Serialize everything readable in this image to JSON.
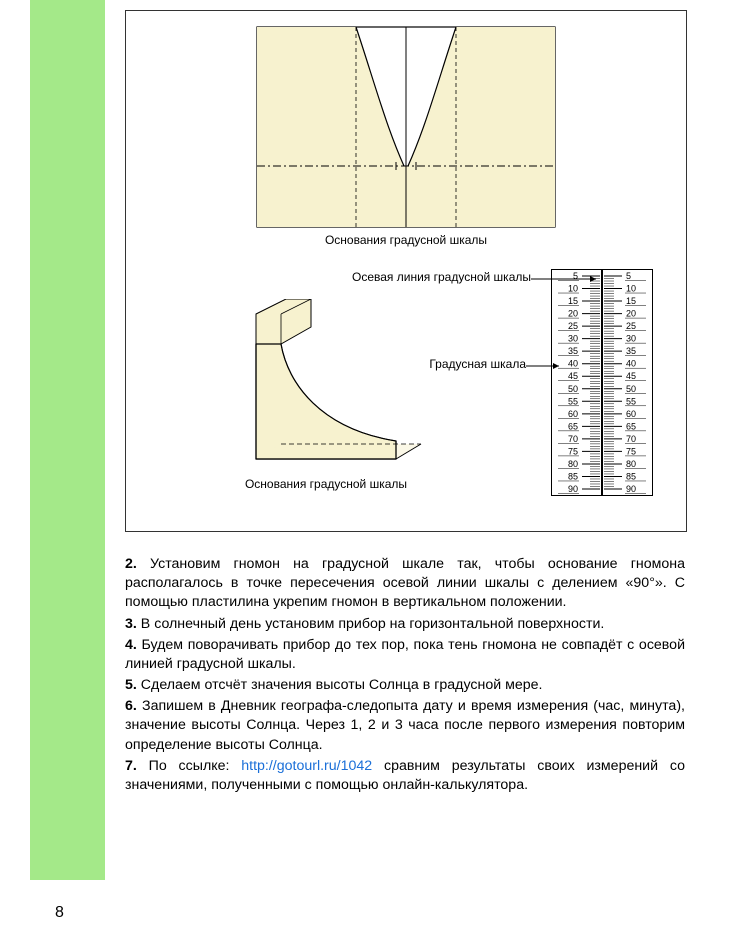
{
  "page": {
    "number": "8",
    "sidebar_color": "#a4e989",
    "background": "#ffffff"
  },
  "figure": {
    "border_color": "#333333",
    "shape_fill": "#f7f2cf",
    "shape_stroke": "#000000",
    "caption_top": "Основания градусной шкалы",
    "caption_bottom": "Основания градусной шкалы",
    "label_axis": "Осевая линия градусной шкалы",
    "label_scale": "Градусная шкала",
    "scale": {
      "values": [
        "5",
        "10",
        "15",
        "20",
        "25",
        "30",
        "35",
        "40",
        "45",
        "50",
        "55",
        "60",
        "65",
        "70",
        "75",
        "80",
        "85",
        "90"
      ],
      "border_color": "#000000",
      "tick_color": "#000000",
      "axis_color": "#000000",
      "font_size": 9
    }
  },
  "text": {
    "p2_num": "2.",
    "p2": "Установим гномон на градусной шкале так, чтобы основание гномо­на располагалось в точке пересечения осевой линии шкалы с делением «90°». С помощью пластилина укрепим гномон в вертикальном поло­жении.",
    "p3_num": "3.",
    "p3": "В солнечный день установим прибор на горизонтальной поверх­ности.",
    "p4_num": "4.",
    "p4": "Будем поворачивать прибор до тех пор, пока тень гномона не совпа­дёт с осевой линией градусной шкалы.",
    "p5_num": "5.",
    "p5": "Сделаем отсчёт значения высоты Солнца в градусной мере.",
    "p6_num": "6.",
    "p6": "Запишем в Дневник географа-следопыта дату и время измерения (час, минута), значение высоты Солнца. Через 1, 2 и 3 часа после перво­го измерения повторим определение высоты Солнца.",
    "p7_num": "7.",
    "p7a": "По ссылке: ",
    "p7_link": "http://gotourl.ru/1042",
    "p7b": " сравним результаты своих измере­ний со значениями, полученными с помощью онлайн-калькулятора."
  }
}
